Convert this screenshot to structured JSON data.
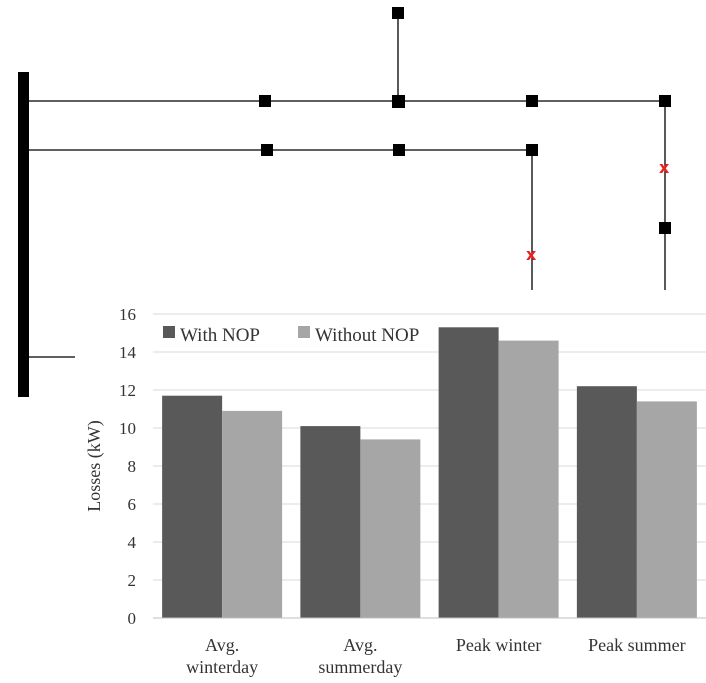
{
  "diagram": {
    "nop_marker_text": "x",
    "colors": {
      "wire": "#000000",
      "node": "#000000",
      "nop_marker": "#e8211f"
    }
  },
  "chart_data": {
    "type": "bar",
    "title": "",
    "xlabel": "",
    "ylabel": "Losses (kW)",
    "ylim": [
      0,
      16
    ],
    "yticks": [
      0,
      2,
      4,
      6,
      8,
      10,
      12,
      14,
      16
    ],
    "grid": true,
    "legend_position": "top-left",
    "categories": [
      [
        "Avg.",
        "winterday"
      ],
      [
        "Avg.",
        "summerday"
      ],
      [
        "Peak winter"
      ],
      [
        "Peak summer"
      ]
    ],
    "series": [
      {
        "name": "With NOP",
        "color": "#595959",
        "values": [
          11.7,
          10.1,
          15.3,
          12.2
        ]
      },
      {
        "name": "Without NOP",
        "color": "#a6a6a6",
        "values": [
          10.9,
          9.4,
          14.6,
          11.4
        ]
      }
    ]
  }
}
